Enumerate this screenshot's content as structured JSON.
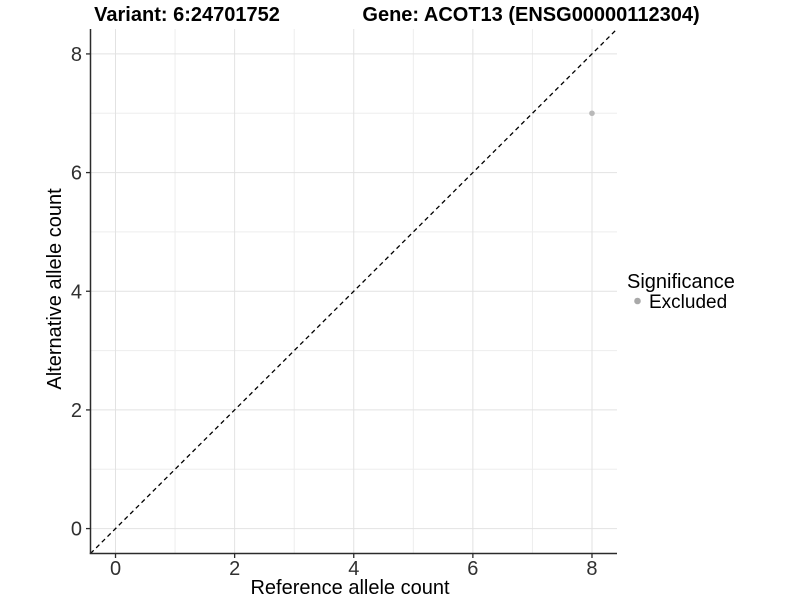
{
  "chart_data": {
    "type": "scatter",
    "titles": {
      "left": "Variant: 6:24701752",
      "right": "Gene: ACOT13 (ENSG00000112304)"
    },
    "xlabel": "Reference allele count",
    "ylabel": "Alternative allele count",
    "xlim": [
      -0.42,
      8.42
    ],
    "ylim": [
      -0.42,
      8.42
    ],
    "x_major_ticks": [
      0,
      2,
      4,
      6,
      8
    ],
    "y_major_ticks": [
      0,
      2,
      4,
      6,
      8
    ],
    "x_minor_gridlines": [
      1,
      3,
      5,
      7
    ],
    "y_minor_gridlines": [
      1,
      3,
      5,
      7
    ],
    "grid": "major and minor gridlines on, white panel background",
    "points": [
      {
        "x": 8,
        "y": 7,
        "series": "Excluded"
      }
    ],
    "abline": {
      "slope": 1,
      "intercept": 0,
      "linetype": "dashed",
      "color": "#000000"
    },
    "legend": {
      "title": "Significance",
      "position": "right",
      "entries": [
        {
          "label": "Excluded",
          "color": "#b0b0b0"
        }
      ]
    },
    "colors": {
      "point": "#b9b9b9",
      "legend_key": "#a9a9a9",
      "grid_major": "#e2e2e2",
      "grid_minor": "#ededed",
      "axis_line": "#2b2b2b",
      "tick_text": "#303030",
      "title_text": "#000000",
      "abline": "#000000"
    }
  }
}
